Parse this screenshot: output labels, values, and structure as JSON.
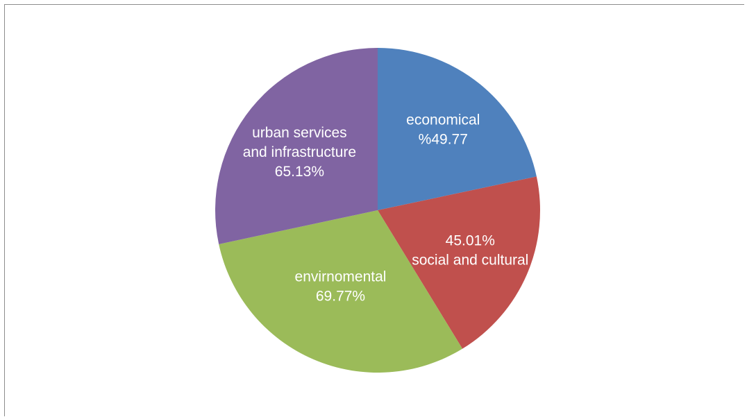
{
  "chart_data": {
    "type": "pie",
    "title": "",
    "start_angle": "12 o'clock, clockwise",
    "slices": [
      {
        "category": "economical",
        "label_lines": [
          "economical",
          "%49.77"
        ],
        "value": 49.77,
        "color": "#4f81bd"
      },
      {
        "category": "social and cultural",
        "label_lines": [
          "45.01%",
          "social and cultural"
        ],
        "value": 45.01,
        "color": "#c0504d"
      },
      {
        "category": "envirnomental",
        "label_lines": [
          "envirnomental",
          "69.77%"
        ],
        "value": 69.77,
        "color": "#9bbb59"
      },
      {
        "category": "urban services and infrastructure",
        "label_lines": [
          "urban services",
          "and infrastructure",
          "65.13%"
        ],
        "value": 65.13,
        "color": "#8064a2"
      }
    ],
    "legend": "none",
    "border_color": "#8c8c8c"
  }
}
